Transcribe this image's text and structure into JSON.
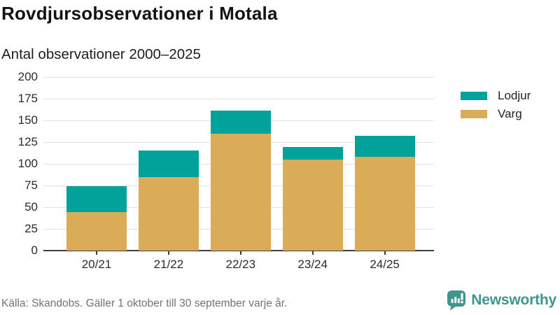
{
  "header": {
    "title": "Rovdjursobservationer i Motala",
    "subtitle": "Antal observationer 2000–2025"
  },
  "chart_data": {
    "type": "bar",
    "stacked": true,
    "title": "Rovdjursobservationer i Motala",
    "subtitle": "Antal observationer 2000–2025",
    "categories": [
      "20/21",
      "21/22",
      "22/23",
      "23/24",
      "24/25"
    ],
    "series": [
      {
        "name": "Varg",
        "color": "#dbac57",
        "values": [
          44,
          85,
          135,
          105,
          108
        ]
      },
      {
        "name": "Lodjur",
        "color": "#00a29a",
        "values": [
          30,
          30,
          26,
          14,
          24
        ]
      }
    ],
    "totals": [
      74,
      115,
      161,
      119,
      132
    ],
    "xlabel": "",
    "ylabel": "",
    "ylim": [
      0,
      200
    ],
    "ytick_step": 25,
    "yticks": [
      0,
      25,
      50,
      75,
      100,
      125,
      150,
      175,
      200
    ],
    "grid": true,
    "legend_position": "right"
  },
  "legend": {
    "items": [
      {
        "label": "Lodjur",
        "color": "#00a29a"
      },
      {
        "label": "Varg",
        "color": "#dbac57"
      }
    ]
  },
  "footer": {
    "source": "Källa: Skandobs. Gäller 1 oktober till 30 september varje år.",
    "brand": "Newsworthy"
  },
  "colors": {
    "lodjur": "#00a29a",
    "varg": "#dbac57",
    "axis": "#3f3f3f",
    "gridline": "#e2e2e2",
    "brand_teal": "#3e968d"
  }
}
